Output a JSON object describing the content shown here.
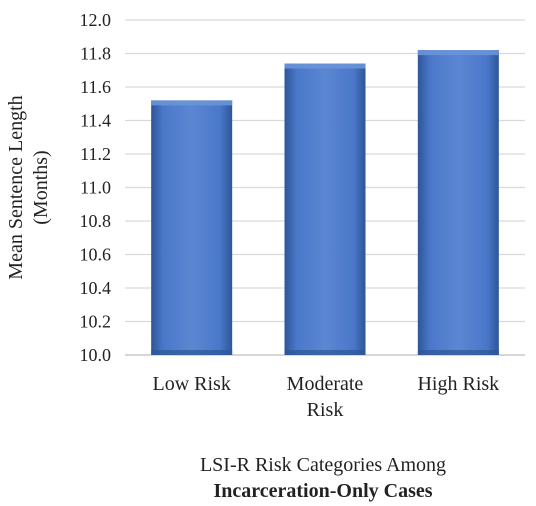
{
  "chart_data": {
    "type": "bar",
    "categories": [
      "Low Risk",
      "Moderate Risk",
      "High Risk"
    ],
    "category_lines": [
      [
        "Low Risk"
      ],
      [
        "Moderate",
        "Risk"
      ],
      [
        "High Risk"
      ]
    ],
    "values": [
      11.52,
      11.74,
      11.82
    ],
    "ylim": [
      10.0,
      12.0
    ],
    "yticks": [
      "10.0",
      "10.2",
      "10.4",
      "10.6",
      "10.8",
      "11.0",
      "11.2",
      "11.4",
      "11.6",
      "11.8",
      "12.0"
    ],
    "ylabel_lines": [
      "Mean Sentence Length",
      "(Months)"
    ],
    "xlabel_line1": "LSI-R Risk Categories Among",
    "xlabel_line2": "Incarceration-Only Cases",
    "grid": true,
    "bar_color": "#4472C4",
    "bar_color_dark": "#2E5597",
    "bar_color_light": "#6A93D8",
    "grid_color": "#D9D9D9"
  }
}
